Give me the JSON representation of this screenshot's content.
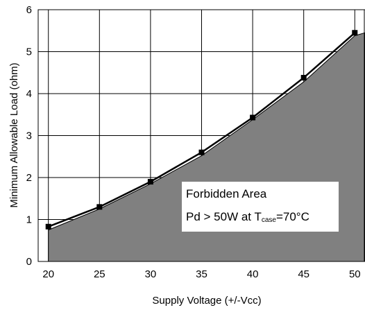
{
  "chart_data": {
    "type": "line",
    "xlabel": "Supply Voltage (+/-Vcc)",
    "ylabel": "Minimum Allowable Load (ohm)",
    "xlim": [
      19,
      51
    ],
    "ylim": [
      0,
      6
    ],
    "grid": true,
    "x_ticks": [
      "20",
      "25",
      "30",
      "35",
      "40",
      "45",
      "50"
    ],
    "y_ticks": [
      "0",
      "1",
      "2",
      "3",
      "4",
      "5",
      "6"
    ],
    "series": [
      {
        "marker": "square",
        "color": "#000000",
        "x": [
          20,
          25,
          30,
          35,
          40,
          45,
          50
        ],
        "y": [
          0.83,
          1.3,
          1.9,
          2.6,
          3.43,
          4.38,
          5.45
        ]
      }
    ],
    "forbidden_area": {
      "color": "#808080",
      "x": [
        20,
        25,
        30,
        35,
        40,
        45,
        50,
        51
      ],
      "y": [
        0.75,
        1.25,
        1.85,
        2.52,
        3.38,
        4.28,
        5.38,
        5.45
      ]
    },
    "annotation": {
      "line1": "Forbidden Area",
      "line2_prefix": "Pd > 50W at T",
      "line2_sub": "case",
      "line2_suffix": "=70°C"
    }
  }
}
